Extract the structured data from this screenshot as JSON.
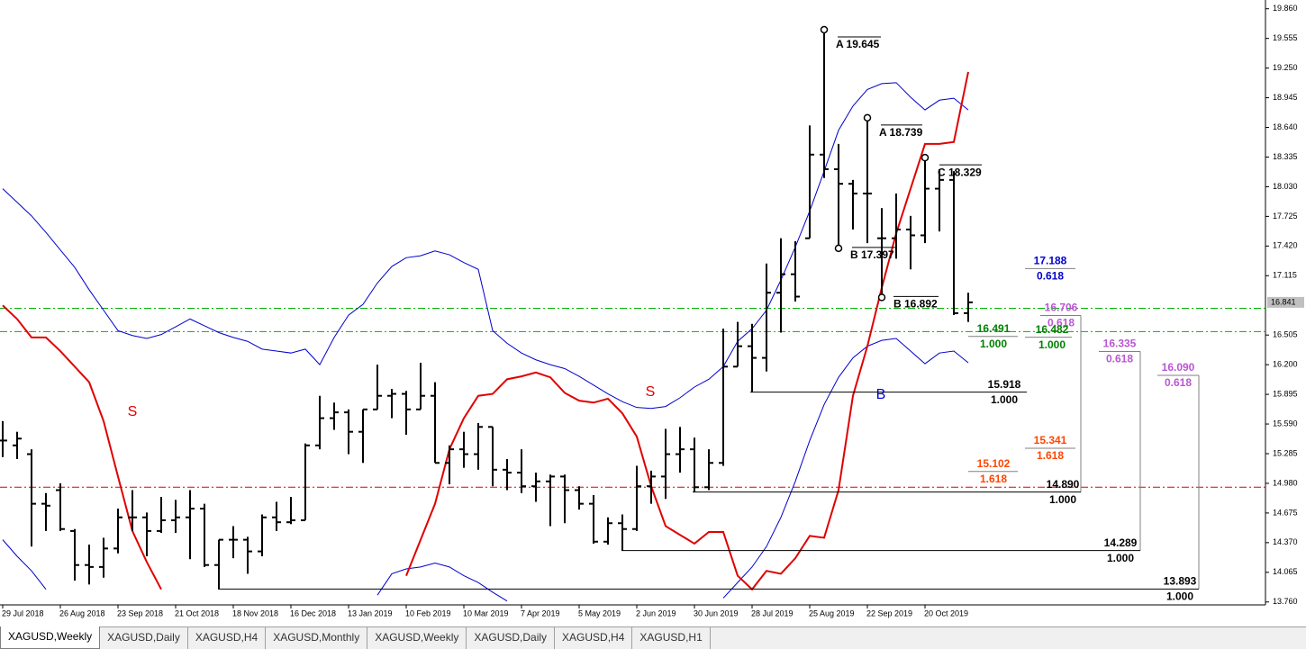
{
  "chart_data": {
    "type": "ohlc",
    "color": "#000000",
    "categories": [
      "29 Jul 2018",
      null,
      null,
      null,
      "26 Aug 2018",
      null,
      null,
      null,
      "23 Sep 2018",
      null,
      null,
      null,
      "21 Oct 2018",
      null,
      null,
      null,
      "18 Nov 2018",
      null,
      null,
      null,
      "16 Dec 2018",
      null,
      null,
      null,
      "13 Jan 2019",
      null,
      null,
      null,
      "10 Feb 2019",
      null,
      null,
      null,
      "10 Mar 2019",
      null,
      null,
      null,
      "7 Apr 2019",
      null,
      null,
      null,
      "5 May 2019",
      null,
      null,
      null,
      "2 Jun 2019",
      null,
      null,
      null,
      "30 Jun 2019",
      null,
      null,
      null,
      "28 Jul 2019",
      null,
      null,
      null,
      "25 Aug 2019",
      null,
      null,
      null,
      "22 Sep 2019",
      null,
      null,
      null,
      "20 Oct 2019",
      null,
      null,
      null
    ],
    "open": [
      15.42,
      15.37,
      15.28,
      14.77,
      14.91,
      14.49,
      14.14,
      14.12,
      14.31,
      14.63,
      14.63,
      14.49,
      14.6,
      14.63,
      14.72,
      14.14,
      14.4,
      14.4,
      14.28,
      14.63,
      14.58,
      14.6,
      15.37,
      15.65,
      15.71,
      15.51,
      15.74,
      15.88,
      15.9,
      15.74,
      15.88,
      15.19,
      15.33,
      15.28,
      15.56,
      15.12,
      15.09,
      14.95,
      15.0,
      15.05,
      14.91,
      14.77,
      14.38,
      14.57,
      14.51,
      14.95,
      15.05,
      15.28,
      15.33,
      14.94,
      15.19,
      16.18,
      16.39,
      16.27,
      16.94,
      17.13,
      17.5,
      18.36,
      18.21,
      18.06,
      17.96,
      17.5,
      17.5,
      17.59,
      17.53,
      18.01,
      18.1,
      16.73
    ],
    "high": [
      15.62,
      15.51,
      15.33,
      14.88,
      14.98,
      14.51,
      14.35,
      14.42,
      14.72,
      14.91,
      14.68,
      14.84,
      14.81,
      14.91,
      14.77,
      14.4,
      14.54,
      14.43,
      14.66,
      14.79,
      14.84,
      15.39,
      15.88,
      15.81,
      15.74,
      15.74,
      16.2,
      15.95,
      15.93,
      16.22,
      16.02,
      15.37,
      15.51,
      15.6,
      15.56,
      15.23,
      15.33,
      15.09,
      15.07,
      15.07,
      14.95,
      14.86,
      14.63,
      14.66,
      15.16,
      15.11,
      15.54,
      15.56,
      15.45,
      15.33,
      16.57,
      16.64,
      16.62,
      17.24,
      17.5,
      17.47,
      18.66,
      19.645,
      18.47,
      18.1,
      18.739,
      17.81,
      17.96,
      17.73,
      18.329,
      18.21,
      18.19,
      16.94
    ],
    "low": [
      15.25,
      15.23,
      14.33,
      14.49,
      14.49,
      13.98,
      13.94,
      14.01,
      14.26,
      14.49,
      14.23,
      14.47,
      14.47,
      14.2,
      14.12,
      13.893,
      14.21,
      14.05,
      14.23,
      14.49,
      14.56,
      14.6,
      15.33,
      15.53,
      15.28,
      15.19,
      15.74,
      15.65,
      15.48,
      15.74,
      15.19,
      14.97,
      15.14,
      15.12,
      14.95,
      14.91,
      14.88,
      14.79,
      14.54,
      14.57,
      14.71,
      14.36,
      14.35,
      14.289,
      14.49,
      14.77,
      14.82,
      15.09,
      14.89,
      14.91,
      15.16,
      16.18,
      15.918,
      16.13,
      16.53,
      16.85,
      17.5,
      18.12,
      17.397,
      17.59,
      17.45,
      16.892,
      17.29,
      17.18,
      17.45,
      17.57,
      16.71,
      16.64
    ],
    "close": [
      15.42,
      15.44,
      14.77,
      14.75,
      14.51,
      14.14,
      14.12,
      14.31,
      14.63,
      14.63,
      14.49,
      14.6,
      14.63,
      14.72,
      14.14,
      14.4,
      14.4,
      14.28,
      14.63,
      14.58,
      14.6,
      15.37,
      15.65,
      15.71,
      15.51,
      15.74,
      15.88,
      15.9,
      15.74,
      15.88,
      15.19,
      15.33,
      15.28,
      15.56,
      15.12,
      15.09,
      14.95,
      15.0,
      15.05,
      14.91,
      14.77,
      14.38,
      14.57,
      14.51,
      14.95,
      15.05,
      15.28,
      15.33,
      14.94,
      15.19,
      16.18,
      16.39,
      16.27,
      16.94,
      17.13,
      16.9,
      18.36,
      18.21,
      18.06,
      17.96,
      17.96,
      17.5,
      17.59,
      17.53,
      18.01,
      18.1,
      16.73,
      16.841
    ],
    "lines": [
      {
        "color": "#0000cd",
        "values": [
          18.01,
          17.87,
          17.73,
          17.56,
          17.38,
          17.2,
          16.97,
          16.76,
          16.55,
          16.5,
          16.47,
          16.51,
          16.59,
          16.67,
          16.6,
          16.53,
          16.48,
          16.44,
          16.36,
          16.34,
          16.32,
          16.36,
          16.2,
          16.48,
          16.71,
          16.82,
          17.04,
          17.21,
          17.3,
          17.32,
          17.37,
          17.33,
          17.25,
          17.18,
          16.55,
          16.42,
          16.32,
          16.25,
          16.2,
          16.16,
          16.08,
          15.99,
          15.9,
          15.82,
          15.76,
          15.75,
          15.77,
          15.86,
          15.97,
          16.05,
          16.18,
          16.44,
          16.57,
          16.76,
          17.07,
          17.41,
          17.78,
          18.19,
          18.61,
          18.86,
          19.03,
          19.09,
          19.1,
          18.95,
          18.82,
          18.92,
          18.94,
          18.82
        ]
      },
      {
        "color": "#0000cd",
        "values": [
          14.4,
          14.23,
          14.08,
          13.89,
          null,
          null,
          null,
          null,
          null,
          null,
          null,
          null,
          null,
          null,
          null,
          null,
          null,
          null,
          null,
          null,
          null,
          null,
          null,
          null,
          null,
          null,
          13.83,
          14.05,
          14.1,
          14.12,
          14.16,
          14.12,
          14.03,
          13.96,
          13.86,
          13.77,
          null,
          null,
          null,
          null,
          null,
          null,
          null,
          null,
          null,
          null,
          null,
          null,
          null,
          null,
          13.8,
          13.96,
          14.12,
          14.33,
          14.63,
          15.0,
          15.42,
          15.79,
          16.07,
          16.27,
          16.39,
          16.45,
          16.47,
          16.34,
          16.21,
          16.32,
          16.34,
          16.22
        ]
      },
      {
        "color": "#e00000",
        "values": [
          16.81,
          16.67,
          16.48,
          16.48,
          16.34,
          16.18,
          16.02,
          15.62,
          15.05,
          14.49,
          14.17,
          13.89,
          null,
          null,
          null,
          null,
          null,
          null,
          null,
          null,
          null,
          null,
          null,
          null,
          null,
          null,
          null,
          null,
          14.03,
          14.4,
          14.77,
          15.33,
          15.65,
          15.88,
          15.9,
          16.05,
          16.08,
          16.12,
          16.07,
          15.91,
          15.83,
          15.81,
          15.85,
          15.7,
          15.46,
          14.95,
          14.54,
          14.45,
          14.36,
          14.48,
          14.48,
          14.03,
          13.89,
          14.08,
          14.05,
          14.21,
          14.44,
          14.42,
          14.91,
          15.88,
          16.39,
          16.99,
          17.55,
          18.01,
          18.47,
          18.47,
          18.49,
          19.21
        ]
      }
    ],
    "ylim": [
      13.73,
      19.95
    ],
    "yticks": [
      {
        "value": 19.86,
        "label": "19.860"
      },
      19.555,
      {
        "value": 19.25,
        "label": "19.250"
      },
      18.945,
      {
        "value": 18.64,
        "label": "18.640"
      },
      18.335,
      {
        "value": 18.03,
        "label": "18.030"
      },
      17.725,
      {
        "value": 17.42,
        "label": "17.420"
      },
      17.115,
      16.505,
      {
        "value": 16.2,
        "label": "16.200"
      },
      15.895,
      {
        "value": 15.59,
        "label": "15.590"
      },
      15.285,
      {
        "value": 14.98,
        "label": "14.980"
      },
      14.675,
      {
        "value": 14.37,
        "label": "14.370"
      },
      14.065,
      {
        "value": 13.76,
        "label": "13.760"
      }
    ],
    "hlines": [
      {
        "value": 16.78,
        "color": "#00b000"
      },
      {
        "value": 16.54,
        "color": "#00b000"
      },
      {
        "value": 14.94,
        "color": "#e00000"
      }
    ],
    "levels": [
      {
        "value": 17.188,
        "label": "17.188",
        "ratio": "0.618",
        "color": "#0000cd"
      },
      {
        "value": 16.706,
        "label": "16.706",
        "ratio": "0.618",
        "color": "#ba55d3"
      },
      {
        "value": 16.491,
        "label": "16.491",
        "ratio": "1.000",
        "color": "#008000"
      },
      {
        "value": 16.482,
        "label": "16.482",
        "ratio": "1.000",
        "color": "#008000"
      },
      {
        "value": 16.335,
        "label": "16.335",
        "ratio": "0.618",
        "color": "#ba55d3"
      },
      {
        "value": 16.09,
        "label": "16.090",
        "ratio": "0.618",
        "color": "#ba55d3"
      },
      {
        "value": 15.918,
        "label": "15.918",
        "ratio": "1.000",
        "color": "#000000"
      },
      {
        "value": 15.341,
        "label": "15.341",
        "ratio": "1.618",
        "color": "#ff4500"
      },
      {
        "value": 15.102,
        "label": "15.102",
        "ratio": "1.618",
        "color": "#ff4500"
      },
      {
        "value": 14.89,
        "label": "14.890",
        "ratio": "1.000",
        "color": "#000000"
      },
      {
        "value": 14.289,
        "label": "14.289",
        "ratio": "1.000",
        "color": "#000000"
      },
      {
        "value": 13.893,
        "label": "13.893",
        "ratio": "1.000",
        "color": "#000000"
      }
    ],
    "swings": [
      {
        "label": "A 19.645"
      },
      {
        "label": "A 18.739"
      },
      {
        "label": "C 18.329"
      },
      {
        "label": "B 17.397"
      },
      {
        "label": "B 16.892"
      }
    ],
    "annotations": [
      {
        "text": "S",
        "color": "#e00000"
      },
      {
        "text": "S",
        "color": "#e00000"
      },
      {
        "text": "B",
        "color": "#0000cd"
      }
    ]
  },
  "tabs": [
    "XAGUSD,Weekly",
    "XAGUSD,Daily",
    "XAGUSD,H4",
    "XAGUSD,Monthly",
    "XAGUSD,Weekly",
    "XAGUSD,Daily",
    "XAGUSD,H4",
    "XAGUSD,H1"
  ]
}
